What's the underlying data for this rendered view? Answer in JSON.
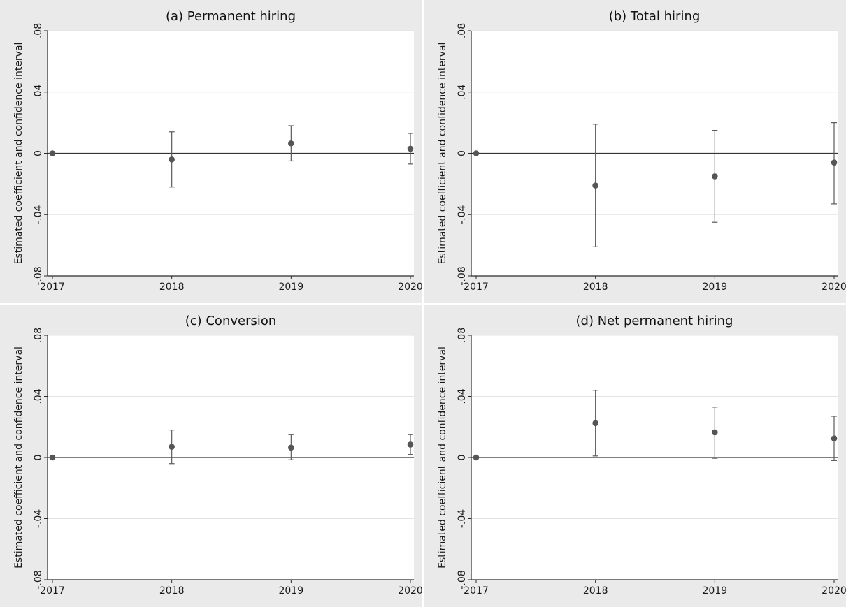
{
  "chart_data": [
    {
      "type": "scatter",
      "title": "(a) Permanent hiring",
      "ylabel": "Estimated coefficient and confidence interval",
      "xlabel": "",
      "x": [
        "2017",
        "2018",
        "2019",
        "2020"
      ],
      "estimates": [
        0,
        -0.004,
        0.0065,
        0.003
      ],
      "ci_low": [
        0,
        -0.022,
        -0.005,
        -0.007
      ],
      "ci_high": [
        0,
        0.014,
        0.018,
        0.013
      ],
      "yticks": [
        ".08",
        ".04",
        "0",
        "-.04",
        "-.08"
      ],
      "ylim": [
        -0.08,
        0.08
      ],
      "reference_line": 0,
      "grid": true
    },
    {
      "type": "scatter",
      "title": "(b) Total hiring",
      "ylabel": "Estimated coefficient and confidence interval",
      "xlabel": "",
      "x": [
        "2017",
        "2018",
        "2019",
        "2020"
      ],
      "estimates": [
        0,
        -0.021,
        -0.015,
        -0.006
      ],
      "ci_low": [
        0,
        -0.061,
        -0.045,
        -0.033
      ],
      "ci_high": [
        0,
        0.019,
        0.015,
        0.02
      ],
      "yticks": [
        ".08",
        ".04",
        "0",
        "-.04",
        "-.08"
      ],
      "ylim": [
        -0.08,
        0.08
      ],
      "reference_line": 0,
      "grid": true
    },
    {
      "type": "scatter",
      "title": "(c) Conversion",
      "ylabel": "Estimated coefficient and confidence interval",
      "xlabel": "",
      "x": [
        "2017",
        "2018",
        "2019",
        "2020"
      ],
      "estimates": [
        0,
        0.007,
        0.0065,
        0.0085
      ],
      "ci_low": [
        0,
        -0.004,
        -0.0015,
        0.002
      ],
      "ci_high": [
        0,
        0.018,
        0.015,
        0.015
      ],
      "yticks": [
        ".08",
        ".04",
        "0",
        "-.04",
        "-.08"
      ],
      "ylim": [
        -0.08,
        0.08
      ],
      "reference_line": 0,
      "grid": true
    },
    {
      "type": "scatter",
      "title": "(d) Net permanent hiring",
      "ylabel": "Estimated coefficient and confidence interval",
      "xlabel": "",
      "x": [
        "2017",
        "2018",
        "2019",
        "2020"
      ],
      "estimates": [
        0,
        0.0225,
        0.0165,
        0.0125
      ],
      "ci_low": [
        0,
        0.001,
        -0.0005,
        -0.002
      ],
      "ci_high": [
        0,
        0.044,
        0.033,
        0.027
      ],
      "yticks": [
        ".08",
        ".04",
        "0",
        "-.04",
        "-.08"
      ],
      "ylim": [
        -0.08,
        0.08
      ],
      "reference_line": 0,
      "grid": true
    }
  ],
  "colors": {
    "outer_background": "#eaeaea",
    "plot_background": "#ffffff",
    "gridline": "#e3e3e3",
    "axis": "#2b2b2b",
    "reference_line": "#333333",
    "marker": "#555555",
    "ci_line": "#5a5a5a",
    "text": "#1a1a1a"
  }
}
